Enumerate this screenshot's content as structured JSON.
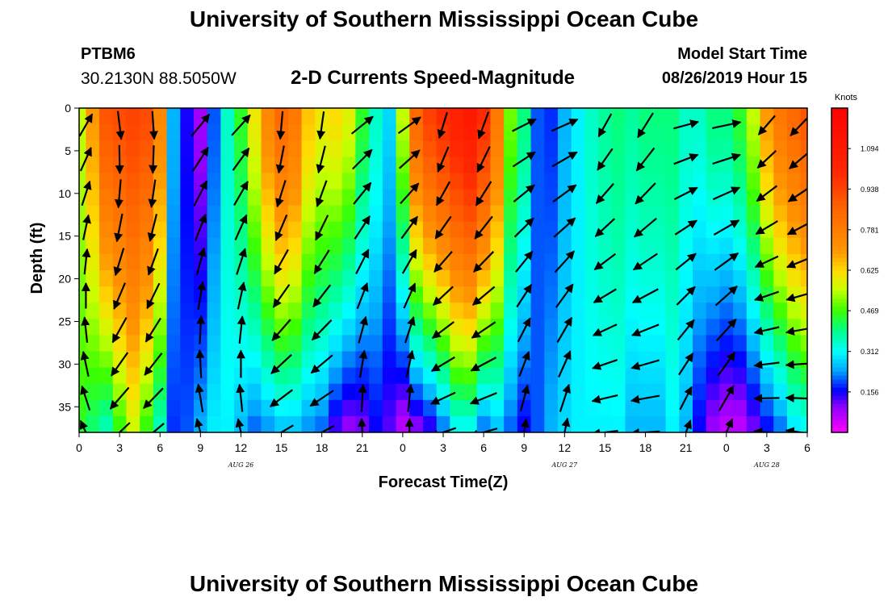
{
  "header": {
    "title": "University of Southern Mississippi Ocean Cube",
    "station_id": "PTBM6",
    "station_coords": "30.2130N 88.5050W",
    "plot_title": "2-D Currents Speed-Magnitude",
    "model_label": "Model Start Time",
    "model_time": "08/26/2019 Hour 15"
  },
  "footer": {
    "title": "University of Southern Mississippi Ocean Cube"
  },
  "chart_data": {
    "type": "heatmap",
    "title": "2-D Currents Speed-Magnitude",
    "xlabel": "Forecast Time(Z)",
    "ylabel": "Depth (ft)",
    "x_tick_labels": [
      "0",
      "3",
      "6",
      "9",
      "12",
      "15",
      "18",
      "21",
      "0",
      "3",
      "6",
      "9",
      "12",
      "15",
      "18",
      "21",
      "0",
      "3",
      "6"
    ],
    "x_range_hours": [
      0,
      54
    ],
    "date_labels": [
      {
        "text": "AUG 26",
        "hour": 12
      },
      {
        "text": "AUG 27",
        "hour": 36
      },
      {
        "text": "AUG 28",
        "hour": 51
      }
    ],
    "y_ticks": [
      0,
      5,
      10,
      15,
      20,
      25,
      30,
      35
    ],
    "y_range": [
      0,
      38
    ],
    "y_inverted": true,
    "colorbar": {
      "label": "Knots",
      "ticks": [
        "1.094",
        "0.938",
        "0.781",
        "0.625",
        "0.469",
        "0.312",
        "0.156"
      ],
      "tick_values": [
        1.094,
        0.938,
        0.781,
        0.625,
        0.469,
        0.312,
        0.156
      ],
      "range": [
        0.0,
        1.25
      ]
    },
    "speed_profile": {
      "hours": [
        0,
        1,
        2,
        3,
        4,
        5,
        6,
        7,
        8,
        9,
        10,
        11,
        12,
        13,
        14,
        15,
        16,
        17,
        18,
        19,
        20,
        21,
        22,
        23,
        24,
        25,
        26,
        27,
        28,
        29,
        30,
        31,
        32,
        33,
        34,
        35,
        36,
        37,
        38,
        39,
        40,
        41,
        42,
        43,
        44,
        45,
        46,
        47,
        48,
        49,
        50,
        51,
        52,
        53,
        54
      ],
      "surface": [
        0.55,
        0.7,
        0.9,
        0.92,
        0.94,
        0.92,
        0.75,
        0.25,
        0.15,
        0.08,
        0.2,
        0.35,
        0.45,
        0.6,
        0.75,
        0.85,
        0.8,
        0.65,
        0.6,
        0.62,
        0.58,
        0.45,
        0.35,
        0.28,
        0.55,
        0.85,
        0.95,
        1.0,
        1.05,
        1.1,
        1.0,
        0.8,
        0.5,
        0.4,
        0.2,
        0.18,
        0.25,
        0.3,
        0.35,
        0.38,
        0.4,
        0.38,
        0.4,
        0.4,
        0.4,
        0.35,
        0.35,
        0.4,
        0.4,
        0.45,
        0.55,
        0.7,
        0.8,
        0.85,
        0.9
      ],
      "bottom": [
        0.45,
        0.4,
        0.35,
        0.45,
        0.55,
        0.45,
        0.35,
        0.18,
        0.2,
        0.25,
        0.3,
        0.3,
        0.25,
        0.2,
        0.22,
        0.25,
        0.25,
        0.22,
        0.2,
        0.12,
        0.08,
        0.1,
        0.15,
        0.12,
        0.05,
        0.08,
        0.12,
        0.2,
        0.3,
        0.3,
        0.2,
        0.25,
        0.2,
        0.15,
        0.2,
        0.25,
        0.28,
        0.3,
        0.3,
        0.3,
        0.3,
        0.25,
        0.25,
        0.25,
        0.3,
        0.25,
        0.15,
        0.08,
        0.05,
        0.05,
        0.1,
        0.15,
        0.2,
        0.28,
        0.3
      ]
    },
    "vector_columns_hours": [
      0.5,
      3,
      5.5,
      9,
      12,
      15,
      18,
      21,
      24.5,
      27,
      30,
      33,
      36,
      39,
      42,
      45,
      48,
      51,
      53.5
    ],
    "vector_depths": [
      2,
      6,
      10,
      14,
      18,
      22,
      26,
      30,
      34,
      38
    ]
  }
}
